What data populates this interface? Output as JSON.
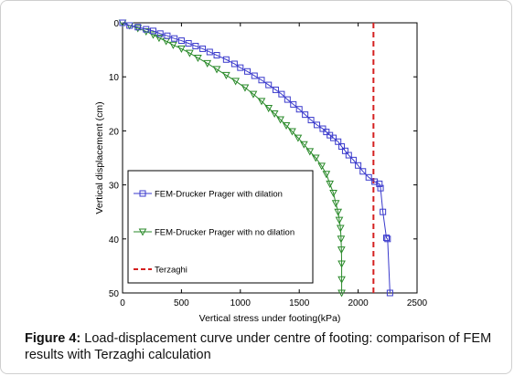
{
  "caption": {
    "label": "Figure 4:",
    "text": "Load-displacement curve under centre of footing: comparison of FEM results with Terzaghi calculation"
  },
  "chart_data": {
    "type": "line",
    "title": "",
    "xlabel": "Vertical stress under footing(kPa)",
    "ylabel": "Vertical displacement (cm)",
    "xlim": [
      0,
      2500
    ],
    "ylim": [
      0,
      50
    ],
    "y_inverted": true,
    "xticks": [
      0,
      500,
      1000,
      1500,
      2000,
      2500
    ],
    "yticks": [
      0,
      10,
      20,
      30,
      40,
      50
    ],
    "grid": false,
    "legend_position": "lower-left",
    "series": [
      {
        "name": "FEM-Drucker Prager with dilation",
        "color": "#3a3acc",
        "marker": "square",
        "line": "solid",
        "x": [
          0,
          60,
          130,
          200,
          260,
          320,
          380,
          440,
          500,
          560,
          620,
          680,
          740,
          800,
          880,
          950,
          1000,
          1060,
          1120,
          1180,
          1240,
          1300,
          1350,
          1400,
          1450,
          1500,
          1550,
          1600,
          1650,
          1700,
          1730,
          1760,
          1790,
          1830,
          1860,
          1890,
          1920,
          1960,
          2000,
          2040,
          2090,
          2140,
          2180,
          2190,
          2210,
          2240,
          2250,
          2270
        ],
        "y": [
          0,
          0.5,
          0.8,
          1.2,
          1.5,
          2.0,
          2.4,
          2.9,
          3.3,
          3.8,
          4.3,
          4.8,
          5.4,
          6.0,
          6.8,
          7.6,
          8.3,
          9.0,
          9.8,
          10.6,
          11.5,
          12.4,
          13.2,
          14.2,
          15.1,
          16.0,
          17.0,
          18.0,
          18.9,
          19.6,
          20.2,
          20.8,
          21.3,
          22.0,
          22.9,
          23.7,
          24.5,
          25.4,
          26.4,
          27.5,
          28.6,
          29.4,
          29.8,
          30.6,
          35.0,
          39.8,
          40.0,
          50.0
        ]
      },
      {
        "name": "FEM-Drucker Prager with no dilation",
        "color": "#2a8a2a",
        "marker": "triangle-down",
        "line": "solid",
        "x": [
          0,
          60,
          130,
          200,
          260,
          310,
          370,
          430,
          500,
          570,
          640,
          720,
          800,
          880,
          960,
          1040,
          1110,
          1180,
          1240,
          1290,
          1340,
          1390,
          1440,
          1490,
          1540,
          1590,
          1640,
          1690,
          1730,
          1760,
          1790,
          1810,
          1830,
          1840,
          1850,
          1855,
          1858,
          1860,
          1860,
          1860
        ],
        "y": [
          0,
          0.5,
          1.0,
          1.6,
          2.2,
          2.8,
          3.4,
          4.1,
          4.8,
          5.6,
          6.5,
          7.5,
          8.6,
          9.7,
          10.8,
          12.0,
          13.2,
          14.5,
          15.8,
          16.8,
          17.9,
          19.0,
          20.1,
          21.3,
          22.5,
          23.8,
          25.0,
          26.5,
          28.0,
          29.8,
          31.5,
          33.4,
          35.0,
          36.5,
          38.0,
          40.0,
          42.0,
          44.6,
          47.5,
          50.0
        ]
      },
      {
        "name": "Terzaghi",
        "color": "#d42020",
        "marker": "none",
        "line": "dashed",
        "x": [
          2130,
          2130
        ],
        "y": [
          0,
          50
        ]
      }
    ]
  }
}
